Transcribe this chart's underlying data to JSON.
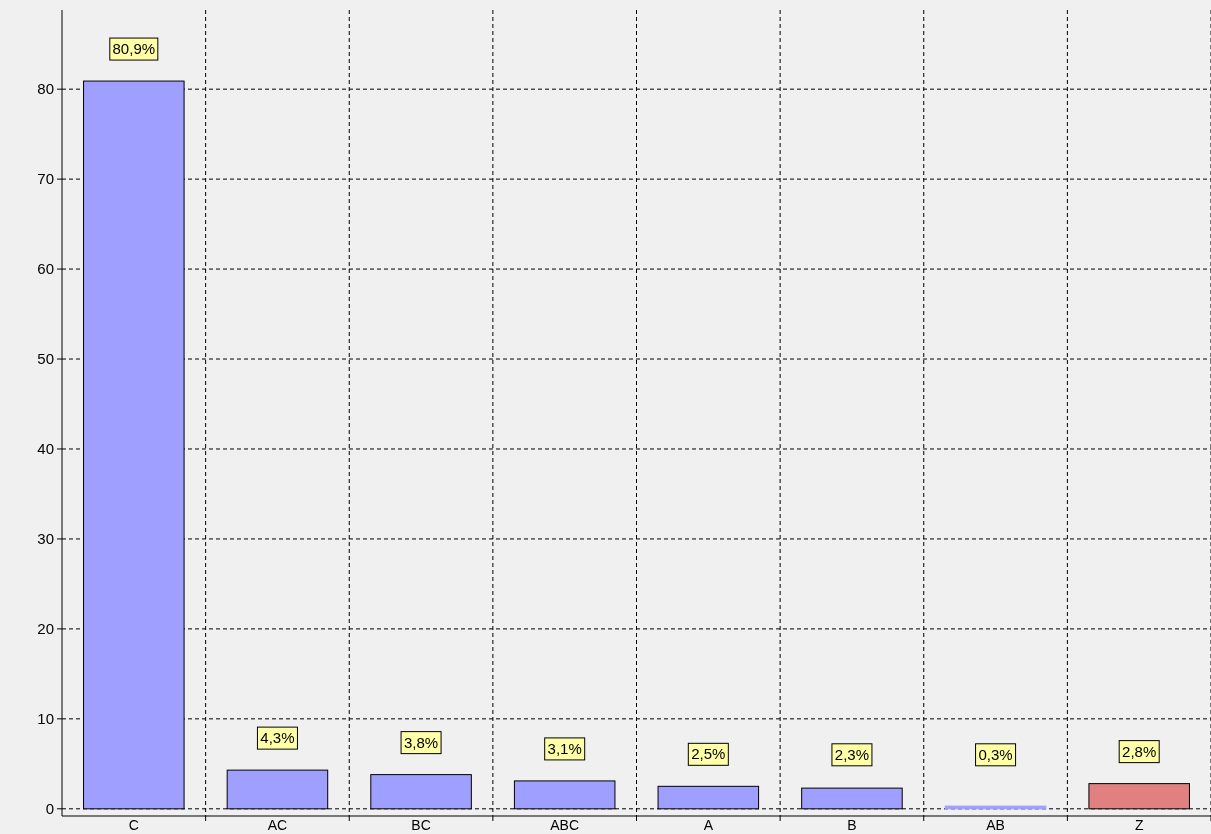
{
  "chart_data": {
    "type": "bar",
    "categories": [
      "C",
      "AC",
      "BC",
      "ABC",
      "A",
      "B",
      "AB",
      "Z"
    ],
    "values": [
      80.9,
      4.3,
      3.8,
      3.1,
      2.5,
      2.3,
      0.3,
      2.8
    ],
    "colors": [
      "#9f9fff",
      "#9f9fff",
      "#9f9fff",
      "#9f9fff",
      "#9f9fff",
      "#9f9fff",
      "#9f9fff",
      "#e08080"
    ],
    "value_labels": [
      "80,9%",
      "4,3%",
      "3,8%",
      "3,1%",
      "2,5%",
      "2,3%",
      "0,3%",
      "2,8%"
    ],
    "ylim": [
      -0.8,
      88.8
    ],
    "yticks": [
      0,
      10,
      20,
      30,
      40,
      50,
      60,
      70,
      80
    ],
    "grid": true
  }
}
